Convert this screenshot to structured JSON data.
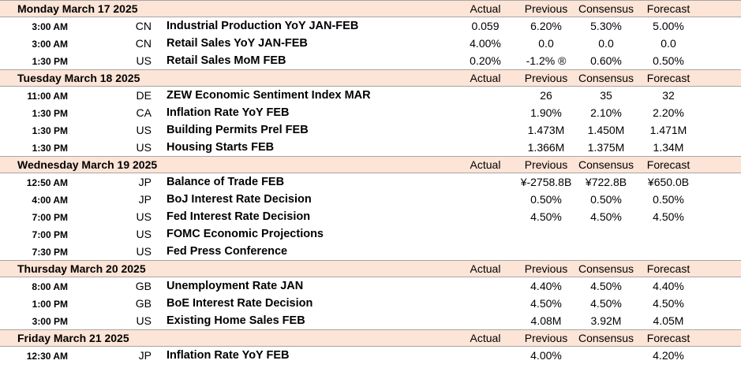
{
  "columns": {
    "actual": "Actual",
    "previous": "Previous",
    "consensus": "Consensus",
    "forecast": "Forecast"
  },
  "days": [
    {
      "date": "Monday March 17 2025",
      "events": [
        {
          "time": "3:00 AM",
          "country": "CN",
          "event": "Industrial Production YoY JAN-FEB",
          "actual": "0.059",
          "previous": "6.20%",
          "consensus": "5.30%",
          "forecast": "5.00%"
        },
        {
          "time": "3:00 AM",
          "country": "CN",
          "event": "Retail Sales YoY JAN-FEB",
          "actual": "4.00%",
          "previous": "0.0",
          "consensus": "0.0",
          "forecast": "0.0"
        },
        {
          "time": "1:30 PM",
          "country": "US",
          "event": "Retail Sales MoM FEB",
          "actual": "0.20%",
          "previous": "-1.2% ®",
          "consensus": "0.60%",
          "forecast": "0.50%"
        }
      ]
    },
    {
      "date": "Tuesday March 18 2025",
      "events": [
        {
          "time": "11:00 AM",
          "country": "DE",
          "event": "ZEW Economic Sentiment Index MAR",
          "actual": "",
          "previous": "26",
          "consensus": "35",
          "forecast": "32"
        },
        {
          "time": "1:30 PM",
          "country": "CA",
          "event": "Inflation Rate YoY FEB",
          "actual": "",
          "previous": "1.90%",
          "consensus": "2.10%",
          "forecast": "2.20%"
        },
        {
          "time": "1:30 PM",
          "country": "US",
          "event": "Building Permits Prel FEB",
          "actual": "",
          "previous": "1.473M",
          "consensus": "1.450M",
          "forecast": "1.471M"
        },
        {
          "time": "1:30 PM",
          "country": "US",
          "event": "Housing Starts FEB",
          "actual": "",
          "previous": "1.366M",
          "consensus": "1.375M",
          "forecast": "1.34M"
        }
      ]
    },
    {
      "date": "Wednesday March 19 2025",
      "events": [
        {
          "time": "12:50 AM",
          "country": "JP",
          "event": "Balance of Trade FEB",
          "actual": "",
          "previous": "¥-2758.8B",
          "consensus": "¥722.8B",
          "forecast": "¥650.0B"
        },
        {
          "time": "4:00 AM",
          "country": "JP",
          "event": "BoJ Interest Rate Decision",
          "actual": "",
          "previous": "0.50%",
          "consensus": "0.50%",
          "forecast": "0.50%"
        },
        {
          "time": "7:00 PM",
          "country": "US",
          "event": "Fed Interest Rate Decision",
          "actual": "",
          "previous": "4.50%",
          "consensus": "4.50%",
          "forecast": "4.50%"
        },
        {
          "time": "7:00 PM",
          "country": "US",
          "event": "FOMC Economic Projections",
          "actual": "",
          "previous": "",
          "consensus": "",
          "forecast": ""
        },
        {
          "time": "7:30 PM",
          "country": "US",
          "event": "Fed Press Conference",
          "actual": "",
          "previous": "",
          "consensus": "",
          "forecast": ""
        }
      ]
    },
    {
      "date": "Thursday March 20 2025",
      "events": [
        {
          "time": "8:00 AM",
          "country": "GB",
          "event": "Unemployment Rate JAN",
          "actual": "",
          "previous": "4.40%",
          "consensus": "4.50%",
          "forecast": "4.40%"
        },
        {
          "time": "1:00 PM",
          "country": "GB",
          "event": "BoE Interest Rate Decision",
          "actual": "",
          "previous": "4.50%",
          "consensus": "4.50%",
          "forecast": "4.50%"
        },
        {
          "time": "3:00 PM",
          "country": "US",
          "event": "Existing Home Sales FEB",
          "actual": "",
          "previous": "4.08M",
          "consensus": "3.92M",
          "forecast": "4.05M"
        }
      ]
    },
    {
      "date": "Friday March 21 2025",
      "events": [
        {
          "time": "12:30 AM",
          "country": "JP",
          "event": "Inflation Rate YoY FEB",
          "actual": "",
          "previous": "4.00%",
          "consensus": "",
          "forecast": "4.20%"
        }
      ]
    }
  ]
}
